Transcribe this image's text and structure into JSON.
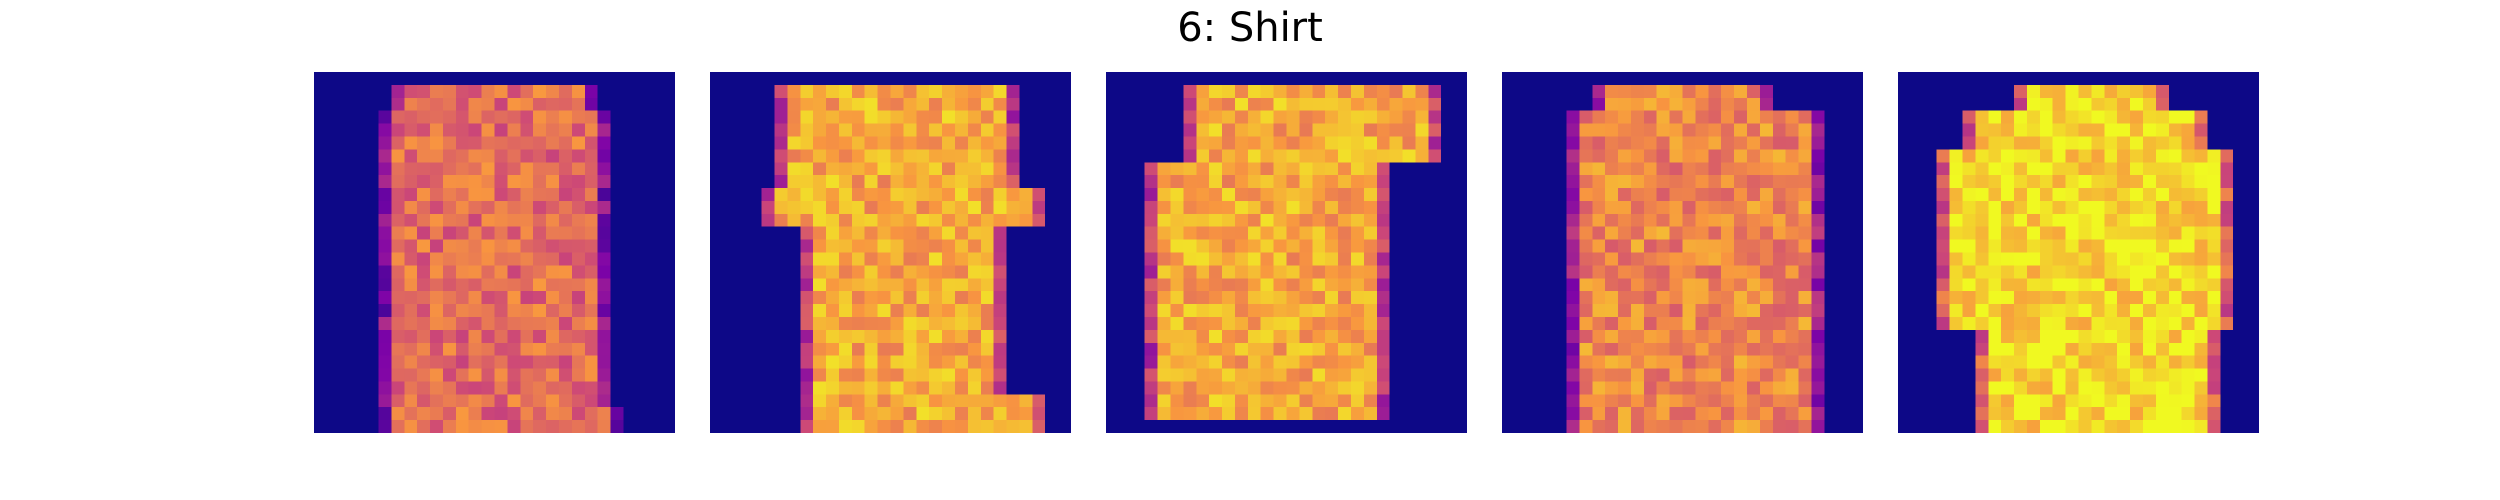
{
  "figure": {
    "title": "6: Shirt",
    "colormap": "plasma",
    "background_color": "#0d0887",
    "grid_size": 28,
    "images": [
      {
        "index": 1,
        "shape": "long-sleeve-fitted"
      },
      {
        "index": 2,
        "shape": "short-sleeve-boxy-tilted"
      },
      {
        "index": 3,
        "shape": "short-sleeve-boxy"
      },
      {
        "index": 4,
        "shape": "long-sleeve-buttoned"
      },
      {
        "index": 5,
        "shape": "long-sleeve-bright"
      }
    ]
  }
}
